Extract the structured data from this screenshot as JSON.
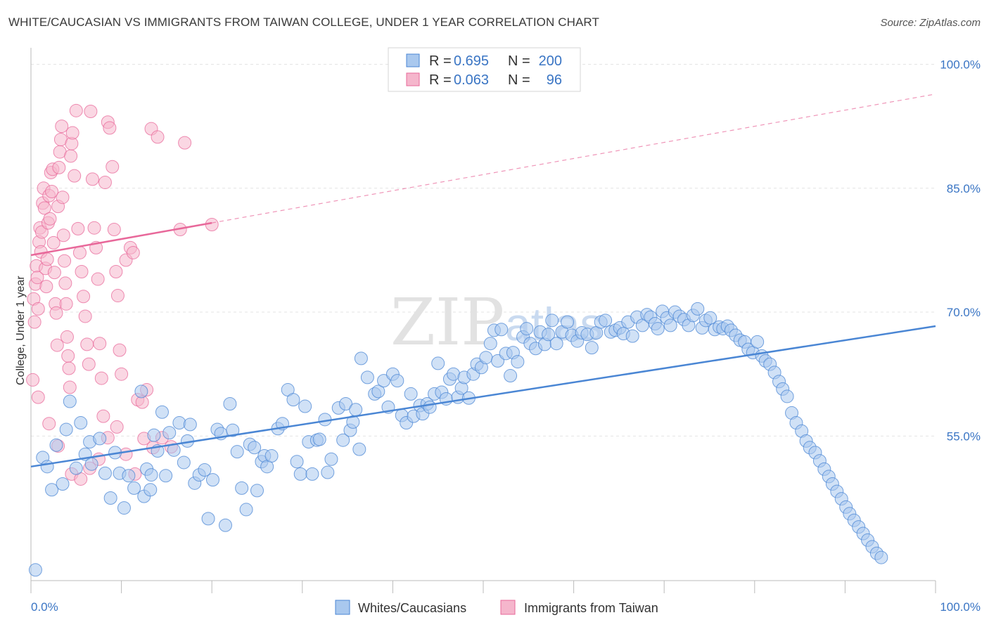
{
  "header": {
    "title": "WHITE/CAUCASIAN VS IMMIGRANTS FROM TAIWAN COLLEGE, UNDER 1 YEAR CORRELATION CHART",
    "source": "Source: ZipAtlas.com"
  },
  "watermark": {
    "zip": "ZIP",
    "atlas": "atlas"
  },
  "legend": {
    "rows": [
      {
        "r_label": "R =",
        "r_value": "0.695",
        "n_label": "N =",
        "n_value": "200"
      },
      {
        "r_label": "R =",
        "r_value": "0.063",
        "n_label": "N =",
        "n_value": "96"
      }
    ]
  },
  "bottom_legend": [
    "Whites/Caucasians",
    "Immigrants from Taiwan"
  ],
  "chart_data": {
    "type": "scatter",
    "title": "WHITE/CAUCASIAN VS IMMIGRANTS FROM TAIWAN COLLEGE, UNDER 1 YEAR CORRELATION CHART",
    "xlabel": "",
    "ylabel": "College, Under 1 year",
    "xlim": [
      0,
      100
    ],
    "ylim": [
      37.5,
      102
    ],
    "x_tick_labels": [
      "0.0%",
      "100.0%"
    ],
    "y_ticks": [
      55,
      70,
      85,
      100
    ],
    "y_tick_labels": [
      "55.0%",
      "70.0%",
      "85.0%",
      "100.0%"
    ],
    "grid": true,
    "colors": {
      "blue": "#4a86d4",
      "blue_fill": "#a9c8ee",
      "pink": "#e8689a",
      "pink_fill": "#f5b6cc"
    },
    "series": [
      {
        "name": "Whites/Caucasians",
        "r": 0.695,
        "n": 200,
        "trend": {
          "x": [
            0,
            100
          ],
          "y": [
            51.3,
            68.3
          ],
          "style": "solid"
        },
        "points": [
          [
            0.5,
            38.8
          ],
          [
            1.3,
            52.4
          ],
          [
            1.8,
            51.3
          ],
          [
            2.3,
            48.5
          ],
          [
            2.8,
            53.9
          ],
          [
            3.5,
            49.2
          ],
          [
            3.9,
            55.8
          ],
          [
            4.3,
            59.2
          ],
          [
            5.0,
            51.1
          ],
          [
            5.5,
            56.6
          ],
          [
            6.0,
            52.8
          ],
          [
            6.5,
            54.3
          ],
          [
            6.7,
            51.6
          ],
          [
            7.6,
            54.7
          ],
          [
            8.2,
            50.5
          ],
          [
            8.8,
            47.5
          ],
          [
            9.3,
            53.0
          ],
          [
            9.8,
            50.5
          ],
          [
            10.3,
            46.3
          ],
          [
            10.8,
            50.2
          ],
          [
            11.4,
            48.7
          ],
          [
            12.2,
            60.4
          ],
          [
            12.5,
            47.7
          ],
          [
            12.8,
            51.0
          ],
          [
            13.2,
            48.5
          ],
          [
            13.3,
            50.3
          ],
          [
            13.6,
            55.1
          ],
          [
            14.0,
            53.2
          ],
          [
            14.5,
            57.9
          ],
          [
            14.9,
            50.2
          ],
          [
            15.3,
            55.4
          ],
          [
            15.8,
            53.3
          ],
          [
            16.4,
            56.6
          ],
          [
            16.9,
            51.8
          ],
          [
            17.3,
            54.4
          ],
          [
            17.6,
            56.4
          ],
          [
            18.1,
            49.3
          ],
          [
            18.6,
            50.3
          ],
          [
            19.2,
            50.9
          ],
          [
            19.6,
            45.0
          ],
          [
            20.1,
            49.7
          ],
          [
            20.6,
            55.8
          ],
          [
            21.0,
            55.3
          ],
          [
            21.5,
            44.2
          ],
          [
            22.0,
            58.9
          ],
          [
            22.3,
            55.7
          ],
          [
            22.8,
            53.1
          ],
          [
            23.3,
            48.7
          ],
          [
            23.8,
            46.1
          ],
          [
            24.2,
            54.0
          ],
          [
            24.7,
            53.6
          ],
          [
            25.0,
            48.4
          ],
          [
            25.5,
            51.9
          ],
          [
            25.8,
            52.6
          ],
          [
            26.1,
            51.3
          ],
          [
            26.6,
            52.6
          ],
          [
            27.3,
            55.9
          ],
          [
            27.8,
            56.5
          ],
          [
            28.4,
            60.6
          ],
          [
            29.0,
            59.4
          ],
          [
            29.4,
            51.9
          ],
          [
            29.8,
            50.4
          ],
          [
            30.3,
            58.6
          ],
          [
            30.7,
            54.3
          ],
          [
            31.1,
            50.4
          ],
          [
            31.6,
            54.5
          ],
          [
            31.9,
            54.6
          ],
          [
            32.5,
            57.0
          ],
          [
            32.8,
            50.6
          ],
          [
            33.2,
            52.2
          ],
          [
            34.0,
            58.4
          ],
          [
            34.5,
            54.5
          ],
          [
            34.8,
            58.9
          ],
          [
            35.3,
            55.7
          ],
          [
            35.6,
            56.7
          ],
          [
            35.9,
            58.2
          ],
          [
            36.3,
            53.4
          ],
          [
            36.5,
            64.4
          ],
          [
            37.2,
            62.1
          ],
          [
            38.0,
            60.1
          ],
          [
            38.4,
            60.4
          ],
          [
            39.0,
            61.7
          ],
          [
            39.5,
            58.5
          ],
          [
            40.0,
            62.5
          ],
          [
            40.5,
            61.7
          ],
          [
            41.0,
            57.5
          ],
          [
            41.5,
            56.6
          ],
          [
            42.0,
            60.1
          ],
          [
            42.3,
            57.4
          ],
          [
            43.0,
            58.7
          ],
          [
            43.3,
            57.7
          ],
          [
            43.8,
            58.9
          ],
          [
            44.1,
            58.5
          ],
          [
            44.6,
            60.1
          ],
          [
            45.0,
            63.8
          ],
          [
            45.4,
            60.3
          ],
          [
            45.9,
            59.5
          ],
          [
            46.3,
            61.9
          ],
          [
            46.7,
            62.5
          ],
          [
            47.2,
            59.7
          ],
          [
            47.6,
            60.8
          ],
          [
            47.9,
            62.1
          ],
          [
            48.4,
            59.6
          ],
          [
            48.9,
            62.5
          ],
          [
            49.3,
            63.7
          ],
          [
            49.8,
            63.3
          ],
          [
            50.3,
            64.5
          ],
          [
            50.8,
            66.2
          ],
          [
            51.2,
            67.8
          ],
          [
            51.6,
            64.1
          ],
          [
            52.0,
            67.9
          ],
          [
            52.5,
            65.0
          ],
          [
            53.0,
            62.3
          ],
          [
            53.3,
            65.1
          ],
          [
            53.8,
            64.0
          ],
          [
            54.4,
            67.0
          ],
          [
            54.8,
            68.0
          ],
          [
            55.2,
            66.2
          ],
          [
            55.8,
            65.6
          ],
          [
            56.3,
            67.6
          ],
          [
            56.8,
            66.1
          ],
          [
            57.2,
            67.3
          ],
          [
            57.6,
            69.0
          ],
          [
            58.1,
            66.2
          ],
          [
            58.7,
            67.6
          ],
          [
            59.3,
            68.8
          ],
          [
            59.8,
            67.2
          ],
          [
            60.4,
            66.5
          ],
          [
            60.9,
            67.5
          ],
          [
            61.5,
            67.3
          ],
          [
            62.0,
            65.7
          ],
          [
            62.5,
            67.5
          ],
          [
            63.0,
            68.8
          ],
          [
            63.5,
            69.0
          ],
          [
            64.1,
            67.6
          ],
          [
            64.6,
            67.8
          ],
          [
            65.1,
            68.1
          ],
          [
            65.5,
            67.4
          ],
          [
            66.0,
            68.8
          ],
          [
            66.5,
            67.1
          ],
          [
            67.0,
            69.4
          ],
          [
            67.6,
            68.4
          ],
          [
            68.1,
            69.7
          ],
          [
            68.5,
            69.4
          ],
          [
            69.0,
            68.6
          ],
          [
            69.3,
            68.0
          ],
          [
            69.8,
            70.1
          ],
          [
            70.3,
            69.3
          ],
          [
            70.7,
            68.4
          ],
          [
            71.2,
            70.0
          ],
          [
            71.7,
            69.5
          ],
          [
            72.2,
            69.1
          ],
          [
            72.7,
            68.4
          ],
          [
            73.2,
            69.6
          ],
          [
            73.7,
            70.4
          ],
          [
            74.2,
            68.1
          ],
          [
            74.6,
            69.0
          ],
          [
            75.1,
            69.3
          ],
          [
            75.6,
            67.9
          ],
          [
            76.1,
            68.2
          ],
          [
            76.5,
            68.0
          ],
          [
            77.0,
            68.3
          ],
          [
            77.4,
            67.8
          ],
          [
            77.9,
            67.2
          ],
          [
            78.4,
            66.6
          ],
          [
            78.9,
            66.4
          ],
          [
            79.3,
            65.5
          ],
          [
            79.8,
            65.1
          ],
          [
            80.3,
            66.4
          ],
          [
            80.8,
            64.7
          ],
          [
            81.2,
            64.1
          ],
          [
            81.7,
            63.7
          ],
          [
            82.2,
            62.7
          ],
          [
            82.7,
            61.6
          ],
          [
            83.1,
            60.7
          ],
          [
            83.6,
            59.8
          ],
          [
            84.1,
            57.8
          ],
          [
            84.6,
            56.6
          ],
          [
            85.2,
            55.6
          ],
          [
            85.7,
            54.4
          ],
          [
            86.1,
            53.6
          ],
          [
            86.7,
            53.0
          ],
          [
            87.2,
            52.0
          ],
          [
            87.7,
            51.0
          ],
          [
            88.2,
            50.1
          ],
          [
            88.6,
            49.2
          ],
          [
            89.1,
            48.3
          ],
          [
            89.6,
            47.4
          ],
          [
            90.1,
            46.4
          ],
          [
            90.5,
            45.6
          ],
          [
            91.0,
            44.8
          ],
          [
            91.5,
            44.0
          ],
          [
            92.0,
            43.2
          ],
          [
            92.5,
            42.4
          ],
          [
            93.0,
            41.6
          ],
          [
            93.5,
            40.8
          ],
          [
            94.0,
            40.3
          ]
        ]
      },
      {
        "name": "Immigrants from Taiwan",
        "r": 0.063,
        "n": 96,
        "trend": {
          "x": [
            0,
            20
          ],
          "y": [
            76.9,
            80.8
          ],
          "style": "solid"
        },
        "trend_extension": {
          "x": [
            20,
            100
          ],
          "y": [
            80.8,
            96.4
          ],
          "style": "dashed"
        },
        "points": [
          [
            0.2,
            61.8
          ],
          [
            0.3,
            71.6
          ],
          [
            0.4,
            68.8
          ],
          [
            0.5,
            73.4
          ],
          [
            0.6,
            75.6
          ],
          [
            0.7,
            74.2
          ],
          [
            0.8,
            70.4
          ],
          [
            0.9,
            78.5
          ],
          [
            1.0,
            80.2
          ],
          [
            1.1,
            77.3
          ],
          [
            1.2,
            79.7
          ],
          [
            1.3,
            83.2
          ],
          [
            1.4,
            85.0
          ],
          [
            1.5,
            82.6
          ],
          [
            1.6,
            75.3
          ],
          [
            1.7,
            73.1
          ],
          [
            1.8,
            76.4
          ],
          [
            1.9,
            80.8
          ],
          [
            2.0,
            84.1
          ],
          [
            2.1,
            81.3
          ],
          [
            2.2,
            86.9
          ],
          [
            2.3,
            84.6
          ],
          [
            2.4,
            87.3
          ],
          [
            2.5,
            78.4
          ],
          [
            2.6,
            74.8
          ],
          [
            2.7,
            71.0
          ],
          [
            2.8,
            69.9
          ],
          [
            2.9,
            66.0
          ],
          [
            3.0,
            82.8
          ],
          [
            3.1,
            87.5
          ],
          [
            3.2,
            89.4
          ],
          [
            3.3,
            90.9
          ],
          [
            3.4,
            92.5
          ],
          [
            3.5,
            83.9
          ],
          [
            3.6,
            79.3
          ],
          [
            3.7,
            76.2
          ],
          [
            3.8,
            73.5
          ],
          [
            3.9,
            71.0
          ],
          [
            4.0,
            67.0
          ],
          [
            4.1,
            64.7
          ],
          [
            4.2,
            63.2
          ],
          [
            4.3,
            60.9
          ],
          [
            4.4,
            88.9
          ],
          [
            4.5,
            90.4
          ],
          [
            4.6,
            91.7
          ],
          [
            4.8,
            86.5
          ],
          [
            5.0,
            94.4
          ],
          [
            5.2,
            80.1
          ],
          [
            5.4,
            77.2
          ],
          [
            5.6,
            74.9
          ],
          [
            5.8,
            71.9
          ],
          [
            6.0,
            69.5
          ],
          [
            6.2,
            66.1
          ],
          [
            6.4,
            63.7
          ],
          [
            6.6,
            94.3
          ],
          [
            6.8,
            86.1
          ],
          [
            7.0,
            80.2
          ],
          [
            7.2,
            77.8
          ],
          [
            7.4,
            74.0
          ],
          [
            7.6,
            66.2
          ],
          [
            7.8,
            62.0
          ],
          [
            8.0,
            57.4
          ],
          [
            8.2,
            85.7
          ],
          [
            8.5,
            93.0
          ],
          [
            8.7,
            92.3
          ],
          [
            9.0,
            87.6
          ],
          [
            9.2,
            80.0
          ],
          [
            9.4,
            74.9
          ],
          [
            9.6,
            72.0
          ],
          [
            9.8,
            65.4
          ],
          [
            10.0,
            62.5
          ],
          [
            10.5,
            76.3
          ],
          [
            11.0,
            77.8
          ],
          [
            11.3,
            77.2
          ],
          [
            11.8,
            59.4
          ],
          [
            12.3,
            59.1
          ],
          [
            12.8,
            60.6
          ],
          [
            13.3,
            92.2
          ],
          [
            14.0,
            91.2
          ],
          [
            16.5,
            80.0
          ],
          [
            17.0,
            90.5
          ],
          [
            20.0,
            80.6
          ],
          [
            0.8,
            59.7
          ],
          [
            2.0,
            56.5
          ],
          [
            3.0,
            53.8
          ],
          [
            4.5,
            50.4
          ],
          [
            5.5,
            49.8
          ],
          [
            6.5,
            51.1
          ],
          [
            7.5,
            52.2
          ],
          [
            8.5,
            54.8
          ],
          [
            9.5,
            56.1
          ],
          [
            10.5,
            52.8
          ],
          [
            11.5,
            50.4
          ],
          [
            12.5,
            54.7
          ],
          [
            13.5,
            53.6
          ],
          [
            14.5,
            54.8
          ],
          [
            15.5,
            53.7
          ]
        ]
      }
    ]
  }
}
